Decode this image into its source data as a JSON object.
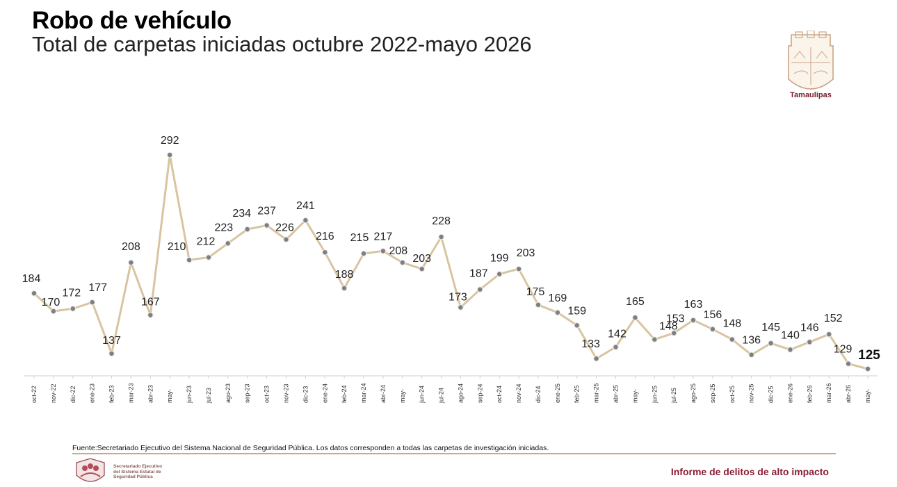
{
  "header": {
    "title": "Robo de vehículo",
    "subtitle": "Total de carpetas iniciadas octubre 2022-mayo 2026"
  },
  "emblem": {
    "label": "Tamaulipas",
    "icon": "tamaulipas-coat-of-arms-icon"
  },
  "chart_data": {
    "type": "line",
    "title": "Robo de vehículo",
    "subtitle": "Total de carpetas iniciadas octubre 2022-mayo 2026",
    "categories": [
      "oct-22",
      "nov-22",
      "dic-22",
      "ene-23",
      "feb-23",
      "mar-23",
      "abr-23",
      "may-",
      "jun-23",
      "jul-23",
      "ago-23",
      "sep-23",
      "oct-23",
      "nov-23",
      "dic-23",
      "ene-24",
      "feb-24",
      "mar-24",
      "abr-24",
      "may-",
      "jun-24",
      "jul-24",
      "ago-24",
      "sep-24",
      "oct-24",
      "nov-24",
      "dic-24",
      "ene-25",
      "feb-25",
      "mar-25",
      "abr-25",
      "may-",
      "jun-25",
      "jul-25",
      "ago-25",
      "sep-25",
      "oct-25",
      "nov-25",
      "dic-25",
      "ene-26",
      "feb-26",
      "mar-26",
      "abr-26",
      "may-"
    ],
    "series": [
      {
        "values": [
          184,
          170,
          172,
          177,
          137,
          208,
          167,
          292,
          210,
          212,
          223,
          234,
          237,
          226,
          241,
          216,
          188,
          215,
          217,
          208,
          203,
          228,
          173,
          187,
          199,
          203,
          175,
          169,
          159,
          133,
          142,
          165,
          148,
          153,
          163,
          156,
          148,
          136,
          145,
          140,
          146,
          152,
          129,
          125
        ]
      }
    ],
    "ylim": [
      110,
      300
    ],
    "grid": false,
    "legend": "none",
    "line_color": "#d9c4a0",
    "marker_color": "#7f7f7f",
    "highlight_last": true
  },
  "footer": {
    "source": "Fuente:Secretariado Ejecutivo del Sistema Nacional de Seguridad Pública. Los datos corresponden a todas las carpetas de investigación iniciadas.",
    "org_line1": "Secretariado Ejecutivo",
    "org_line2": "del Sistema Estatal de",
    "org_line3": "Seguridad Pública",
    "report": "Informe de delitos de alto impacto",
    "logo_icon": "secretariado-logo-icon",
    "accent": "#8b1d34",
    "divider_color": "#c9a98a"
  }
}
